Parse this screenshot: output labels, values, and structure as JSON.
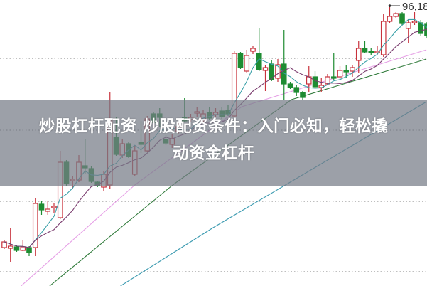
{
  "title": {
    "line1": "炒股杠杆配资 炒股配资条件：入门必知，轻松撬",
    "line2": "动资金杠杆"
  },
  "chart_data": {
    "type": "candlestick",
    "title": "",
    "xlabel": "",
    "ylabel": "",
    "ylim": [
      76.58,
      96.68
    ],
    "grid": "horizontal dotted",
    "colors": {
      "up": "#c8323c",
      "down": "#1e8c32",
      "ma5": "#3aa0a8",
      "ma10": "#7a3c6e",
      "ma_pink": "#e6a0e6",
      "ma_green": "#2f7a3a",
      "ma_blue": "#3a9ab0",
      "grid": "#999999"
    },
    "peak_label": "96,18",
    "candles": [
      [
        79.28,
        79.83,
        79.18,
        79.68
      ],
      [
        79.23,
        80.63,
        78.28,
        79.38
      ],
      [
        79.33,
        79.43,
        78.98,
        79.08
      ],
      [
        79.08,
        79.83,
        79.03,
        79.33
      ],
      [
        79.28,
        79.38,
        78.68,
        78.93
      ],
      [
        79.28,
        82.73,
        78.68,
        82.38
      ],
      [
        82.33,
        82.53,
        81.58,
        81.93
      ],
      [
        81.83,
        82.53,
        81.58,
        81.98
      ],
      [
        82.08,
        82.43,
        81.68,
        82.18
      ],
      [
        81.38,
        86.08,
        81.28,
        85.28
      ],
      [
        85.28,
        85.43,
        83.58,
        83.78
      ],
      [
        83.98,
        84.33,
        83.43,
        84.08
      ],
      [
        84.03,
        85.78,
        83.88,
        85.28
      ],
      [
        85.03,
        86.93,
        84.43,
        84.88
      ],
      [
        84.83,
        85.03,
        83.83,
        83.93
      ],
      [
        83.88,
        83.98,
        83.53,
        83.63
      ],
      [
        83.53,
        84.68,
        83.28,
        84.43
      ],
      [
        83.68,
        90.18,
        83.43,
        88.18
      ],
      [
        87.03,
        88.43,
        85.73,
        85.83
      ],
      [
        85.78,
        86.93,
        85.58,
        86.58
      ],
      [
        86.58,
        86.68,
        85.58,
        85.68
      ],
      [
        84.43,
        86.43,
        84.28,
        86.08
      ],
      [
        86.68,
        88.18,
        85.93,
        86.53
      ],
      [
        86.08,
        88.53,
        85.98,
        88.33
      ],
      [
        88.68,
        88.78,
        87.93,
        88.08
      ],
      [
        88.68,
        89.08,
        87.78,
        88.43
      ],
      [
        86.88,
        87.18,
        86.48,
        86.63
      ],
      [
        86.53,
        87.28,
        86.28,
        86.93
      ],
      [
        87.43,
        88.08,
        87.28,
        87.78
      ],
      [
        88.43,
        89.78,
        88.08,
        88.18
      ],
      [
        88.28,
        88.68,
        88.08,
        88.43
      ],
      [
        88.73,
        89.18,
        88.43,
        88.83
      ],
      [
        88.18,
        88.93,
        88.08,
        88.68
      ],
      [
        88.78,
        89.18,
        88.28,
        88.38
      ],
      [
        88.63,
        89.08,
        88.43,
        88.78
      ],
      [
        88.88,
        89.18,
        88.33,
        88.48
      ],
      [
        88.93,
        89.28,
        88.53,
        88.68
      ],
      [
        88.53,
        93.08,
        88.43,
        92.93
      ],
      [
        92.93,
        93.03,
        91.83,
        91.93
      ],
      [
        91.68,
        93.18,
        91.53,
        92.78
      ],
      [
        93.08,
        93.43,
        92.88,
        93.28
      ],
      [
        92.93,
        94.68,
        91.68,
        91.78
      ],
      [
        91.73,
        92.08,
        90.28,
        91.93
      ],
      [
        92.18,
        92.43,
        90.98,
        91.08
      ],
      [
        91.18,
        92.53,
        90.93,
        92.13
      ],
      [
        92.18,
        94.58,
        89.68,
        90.78
      ],
      [
        90.78,
        90.93,
        90.43,
        90.53
      ],
      [
        90.53,
        90.68,
        89.93,
        90.18
      ],
      [
        90.18,
        90.28,
        89.68,
        89.83
      ],
      [
        90.78,
        92.03,
        90.18,
        91.28
      ],
      [
        91.28,
        91.68,
        90.48,
        90.58
      ],
      [
        90.53,
        91.18,
        90.18,
        90.68
      ],
      [
        90.78,
        91.48,
        90.68,
        91.28
      ],
      [
        91.28,
        92.93,
        91.08,
        91.18
      ],
      [
        91.28,
        92.03,
        91.08,
        91.73
      ],
      [
        91.73,
        92.08,
        91.18,
        91.63
      ],
      [
        91.68,
        92.08,
        91.28,
        91.93
      ],
      [
        92.43,
        93.78,
        91.53,
        93.28
      ],
      [
        93.28,
        93.78,
        92.93,
        93.03
      ],
      [
        93.08,
        93.28,
        92.78,
        92.98
      ],
      [
        92.98,
        93.43,
        92.78,
        93.08
      ],
      [
        92.83,
        95.68,
        92.68,
        95.18
      ],
      [
        95.18,
        96.18,
        95.08,
        95.53
      ],
      [
        95.53,
        95.83,
        95.43,
        95.73
      ],
      [
        95.73,
        95.83,
        94.93,
        95.03
      ],
      [
        94.68,
        95.33,
        93.68,
        95.08
      ],
      [
        95.08,
        95.83,
        94.93,
        95.18
      ],
      [
        95.08,
        95.28,
        94.18,
        94.33
      ],
      [
        94.98,
        95.13,
        94.03,
        94.18
      ]
    ],
    "peak_index": 62,
    "long_averages": [
      {
        "key": "ma_pink",
        "points": [
          [
            2.7,
            76.58
          ],
          [
            21,
            83.68
          ],
          [
            38.2,
            89.18
          ],
          [
            67.9,
            93.18
          ]
        ]
      },
      {
        "key": "ma_green",
        "points": [
          [
            7.3,
            76.58
          ],
          [
            27.1,
            83.68
          ],
          [
            46.2,
            89.68
          ],
          [
            67.9,
            92.53
          ]
        ]
      },
      {
        "key": "ma_blue",
        "points": [
          [
            18.7,
            76.58
          ],
          [
            33.6,
            80.68
          ],
          [
            67.9,
            89.53
          ]
        ]
      }
    ]
  }
}
